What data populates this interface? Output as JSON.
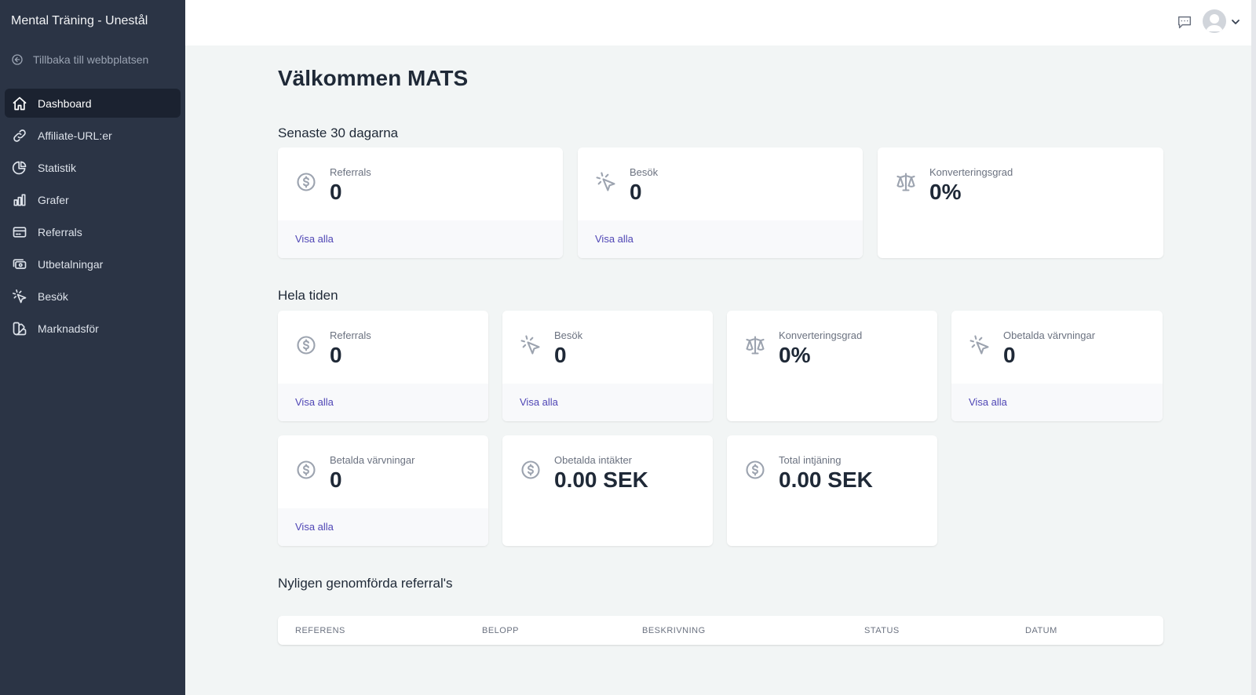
{
  "app": {
    "title": "Mental Träning - Unestål"
  },
  "sidebar": {
    "back_label": "Tillbaka till webbplatsen",
    "items": [
      {
        "label": "Dashboard",
        "icon": "home-icon",
        "active": true
      },
      {
        "label": "Affiliate-URL:er",
        "icon": "link-icon"
      },
      {
        "label": "Statistik",
        "icon": "pie-chart-icon"
      },
      {
        "label": "Grafer",
        "icon": "bar-chart-icon"
      },
      {
        "label": "Referrals",
        "icon": "credit-card-icon"
      },
      {
        "label": "Utbetalningar",
        "icon": "cash-icon"
      },
      {
        "label": "Besök",
        "icon": "cursor-click-icon"
      },
      {
        "label": "Marknadsför",
        "icon": "color-swatch-icon"
      }
    ]
  },
  "main": {
    "welcome": "Välkommen MATS",
    "last30": {
      "title": "Senaste 30 dagarna",
      "cards": [
        {
          "label": "Referrals",
          "value": "0",
          "link": "Visa alla",
          "icon": "dollar-circle-icon"
        },
        {
          "label": "Besök",
          "value": "0",
          "link": "Visa alla",
          "icon": "cursor-click-icon"
        },
        {
          "label": "Konverteringsgrad",
          "value": "0%",
          "icon": "scale-icon"
        }
      ]
    },
    "alltime": {
      "title": "Hela tiden",
      "cards": [
        {
          "label": "Referrals",
          "value": "0",
          "link": "Visa alla",
          "icon": "dollar-circle-icon"
        },
        {
          "label": "Besök",
          "value": "0",
          "link": "Visa alla",
          "icon": "cursor-click-icon"
        },
        {
          "label": "Konverteringsgrad",
          "value": "0%",
          "icon": "scale-icon"
        },
        {
          "label": "Obetalda värvningar",
          "value": "0",
          "link": "Visa alla",
          "icon": "cursor-click-icon"
        },
        {
          "label": "Betalda värvningar",
          "value": "0",
          "link": "Visa alla",
          "icon": "dollar-circle-icon"
        },
        {
          "label": "Obetalda intäkter",
          "value": "0.00 SEK",
          "icon": "dollar-circle-icon"
        },
        {
          "label": "Total intjäning",
          "value": "0.00 SEK",
          "icon": "dollar-circle-icon"
        }
      ]
    },
    "recent": {
      "title": "Nyligen genomförda referral's",
      "columns": [
        "REFERENS",
        "BELOPP",
        "BESKRIVNING",
        "STATUS",
        "DATUM"
      ]
    }
  },
  "colors": {
    "sidebar": "#2b3445",
    "sidebar_active": "#1b2230",
    "link": "#4f46b5",
    "background": "#f2f5f5"
  }
}
